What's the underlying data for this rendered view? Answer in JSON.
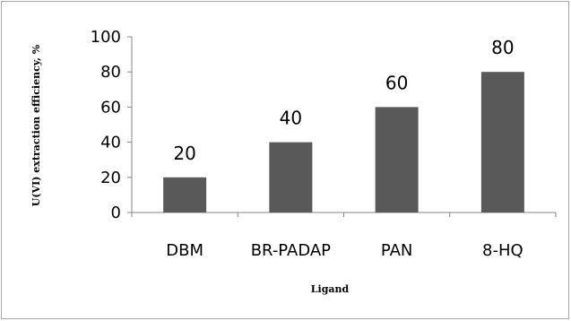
{
  "chart_data": {
    "type": "bar",
    "title": "",
    "categories": [
      "DBM",
      "BR-PADAP",
      "PAN",
      "8-HQ"
    ],
    "values": [
      20,
      40,
      60,
      80
    ],
    "data_labels": [
      "20",
      "40",
      "60",
      "80"
    ],
    "xlabel": "Ligand",
    "ylabel": "U(VI) extraction efficiency, %",
    "ylim": [
      0,
      100
    ],
    "yticks": [
      "0",
      "20",
      "40",
      "60",
      "80",
      "100"
    ],
    "bar_color": "#595959",
    "grid": false,
    "legend": "none"
  }
}
